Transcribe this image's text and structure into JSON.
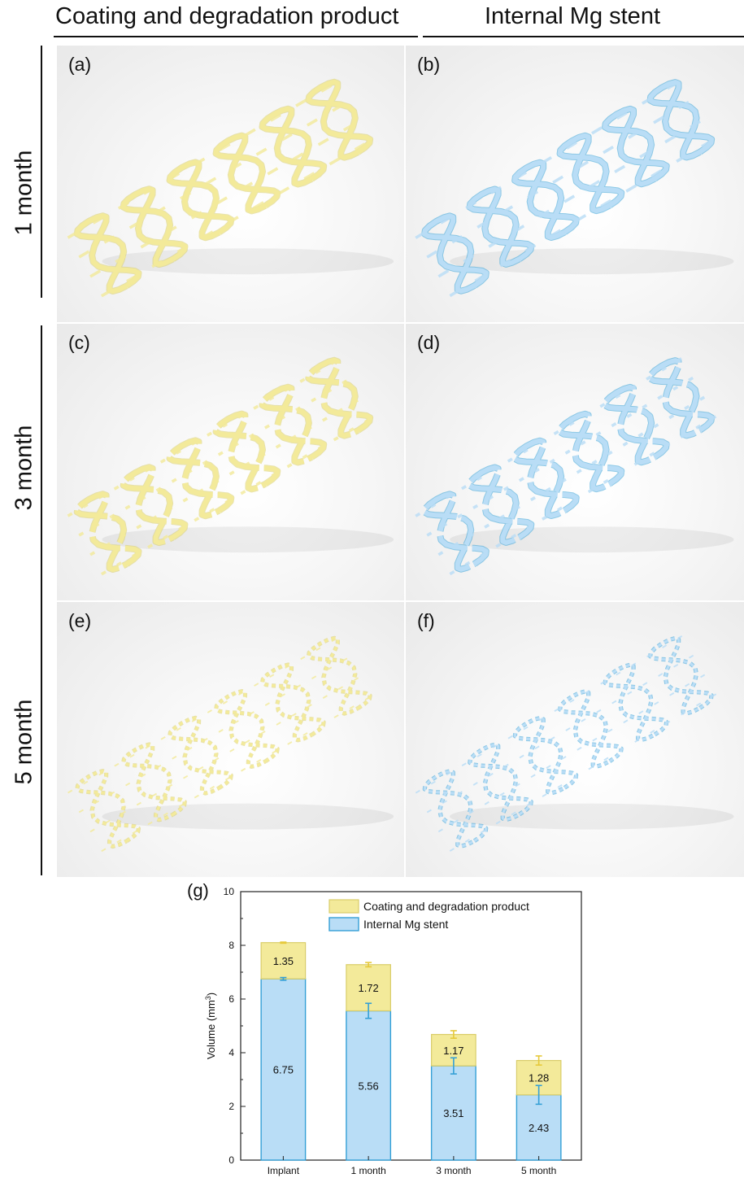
{
  "headers": {
    "left": "Coating and degradation product",
    "right": "Internal Mg stent"
  },
  "rows": [
    {
      "label": "1 month",
      "panels": [
        "(a)",
        "(b)"
      ]
    },
    {
      "label": "3 month",
      "panels": [
        "(c)",
        "(d)"
      ]
    },
    {
      "label": "5 month",
      "panels": [
        "(e)",
        "(f)"
      ]
    }
  ],
  "colors": {
    "coating": "#f3ea9a",
    "coating_edge": "#d9cd6a",
    "mg": "#b9ddf6",
    "mg_edge": "#35a0d6",
    "coating_err": "#e6c93a"
  },
  "chart_label": "(g)",
  "chart_data": {
    "type": "bar",
    "stacked": true,
    "categories": [
      "Implant",
      "1 month",
      "3 month",
      "5 month"
    ],
    "series": [
      {
        "name": "Internal Mg stent",
        "values": [
          6.75,
          5.56,
          3.51,
          2.43
        ],
        "errors": [
          0.05,
          0.28,
          0.3,
          0.35
        ],
        "value_labels": [
          "6.75",
          "5.56",
          "3.51",
          "2.43"
        ]
      },
      {
        "name": "Coating and degradation product",
        "values": [
          1.35,
          1.72,
          1.17,
          1.28
        ],
        "errors": [
          0.02,
          0.08,
          0.14,
          0.17
        ],
        "value_labels": [
          "1.35",
          "1.72",
          "1.17",
          "1.28"
        ]
      }
    ],
    "ylabel_main": "Volume (mm",
    "ylabel_sup": "3",
    "ylabel_end": ")",
    "ylim": [
      0,
      10
    ],
    "yticks": [
      "0",
      "2",
      "4",
      "6",
      "8",
      "10"
    ],
    "legend": "top-right",
    "grid": false
  }
}
